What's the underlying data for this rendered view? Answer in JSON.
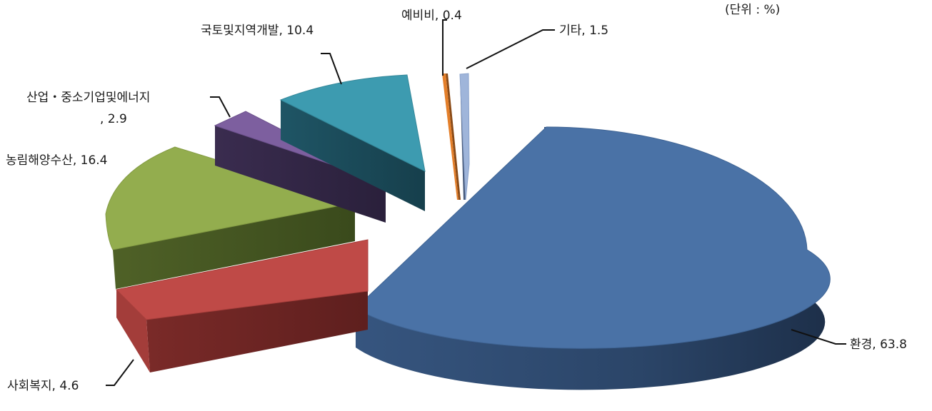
{
  "chart_data": {
    "type": "pie",
    "unit_label": "(단위 : %)",
    "slices": [
      {
        "label": "환경",
        "value": 63.8,
        "color": "#4a72a6",
        "text": "환경, 63.8"
      },
      {
        "label": "사회복지",
        "value": 4.6,
        "color": "#bf4a47",
        "text": "사회복지, 4.6"
      },
      {
        "label": "농림해양수산",
        "value": 16.4,
        "color": "#93ad4e",
        "text": "농림해양수산, 16.4"
      },
      {
        "label": "산업・중소기업및에너지",
        "value": 2.9,
        "color": "#7d5f9f",
        "text_line1": "산업・중소기업및에너지",
        "text_line2": ", 2.9"
      },
      {
        "label": "국토및지역개발",
        "value": 10.4,
        "color": "#3d9bb0",
        "text": "국토및지역개발, 10.4"
      },
      {
        "label": "예비비",
        "value": 0.4,
        "color": "#e47f2a",
        "text": "예비비, 0.4"
      },
      {
        "label": "기타",
        "value": 1.5,
        "color": "#9fb5da",
        "text": "기타, 1.5"
      }
    ]
  }
}
